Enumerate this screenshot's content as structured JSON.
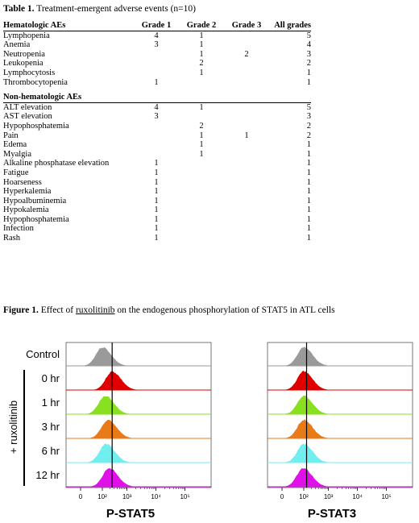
{
  "table1": {
    "caption_label": "Table 1.",
    "caption_text": " Treatment-emergent adverse events (n=10)",
    "headers": [
      "Hematologic AEs",
      "Grade 1",
      "Grade 2",
      "Grade 3",
      "All grades"
    ],
    "hematologic": [
      [
        "Lymphopenia",
        "4",
        "1",
        "",
        "5"
      ],
      [
        "Anemia",
        "3",
        "1",
        "",
        "4"
      ],
      [
        "Neutropenia",
        "",
        "1",
        "2",
        "3"
      ],
      [
        "Leukopenia",
        "",
        "2",
        "",
        "2"
      ],
      [
        "Lymphocytosis",
        "",
        "1",
        "",
        "1"
      ],
      [
        "Thrombocytopenia",
        "1",
        "",
        "",
        "1"
      ]
    ],
    "nonhem_header": "Non-hematologic AEs",
    "nonhematologic": [
      [
        "ALT elevation",
        "4",
        "1",
        "",
        "5"
      ],
      [
        "AST elevation",
        "3",
        "",
        "",
        "3"
      ],
      [
        "Hypophosphatemia",
        "",
        "2",
        "",
        "2"
      ],
      [
        "Pain",
        "",
        "1",
        "1",
        "2"
      ],
      [
        "Edema",
        "",
        "1",
        "",
        "1"
      ],
      [
        "Myalgia",
        "",
        "1",
        "",
        "1"
      ],
      [
        "Alkaline phosphatase elevation",
        "1",
        "",
        "",
        "1"
      ],
      [
        "Fatigue",
        "1",
        "",
        "",
        "1"
      ],
      [
        "Hoarseness",
        "1",
        "",
        "",
        "1"
      ],
      [
        "Hyperkalemia",
        "1",
        "",
        "",
        "1"
      ],
      [
        "Hypoalbuminemia",
        "1",
        "",
        "",
        "1"
      ],
      [
        "Hypokalemia",
        "1",
        "",
        "",
        "1"
      ],
      [
        "Hypophosphatemia",
        "1",
        "",
        "",
        "1"
      ],
      [
        "Infection",
        "1",
        "",
        "",
        "1"
      ],
      [
        "Rash",
        "1",
        "",
        "",
        "1"
      ]
    ]
  },
  "figure1": {
    "caption_label": "Figure 1.",
    "caption_pre": " Effect of ",
    "caption_link": "ruxolitinib",
    "caption_post": " on the endogenous phosphorylation of STAT5 in ATL cells",
    "control_label": "Control",
    "treatment_label": "+ ruxolitinib",
    "timepoints": [
      "0 hr",
      "1 hr",
      "3 hr",
      "6 hr",
      "12 hr"
    ]
  },
  "chart_data": [
    {
      "type": "area",
      "xlabel": "P-STAT5",
      "x_ticks": [
        "0",
        "10²",
        "10³",
        "10⁴",
        "10⁵"
      ],
      "x_scale": "biexponential",
      "series": [
        {
          "name": "Control",
          "peak": 100,
          "color": "#9a9a9a"
        },
        {
          "name": "0 hr",
          "peak": 250,
          "color": "#e00000"
        },
        {
          "name": "1 hr",
          "peak": 130,
          "color": "#88e020"
        },
        {
          "name": "3 hr",
          "peak": 170,
          "color": "#e87a18"
        },
        {
          "name": "6 hr",
          "peak": 140,
          "color": "#70eef0"
        },
        {
          "name": "12 hr",
          "peak": 190,
          "color": "#e010e8"
        }
      ],
      "reference_line": 250
    },
    {
      "type": "area",
      "xlabel": "P-STAT3",
      "x_ticks": [
        "0",
        "10²",
        "10³",
        "10⁴",
        "10⁵"
      ],
      "x_scale": "biexponential",
      "series": [
        {
          "name": "Control",
          "peak": 100,
          "color": "#9a9a9a"
        },
        {
          "name": "0 hr",
          "peak": 100,
          "color": "#e00000"
        },
        {
          "name": "1 hr",
          "peak": 100,
          "color": "#88e020"
        },
        {
          "name": "3 hr",
          "peak": 100,
          "color": "#e87a18"
        },
        {
          "name": "6 hr",
          "peak": 100,
          "color": "#70eef0"
        },
        {
          "name": "12 hr",
          "peak": 90,
          "color": "#e010e8"
        }
      ],
      "reference_line": 130
    }
  ]
}
